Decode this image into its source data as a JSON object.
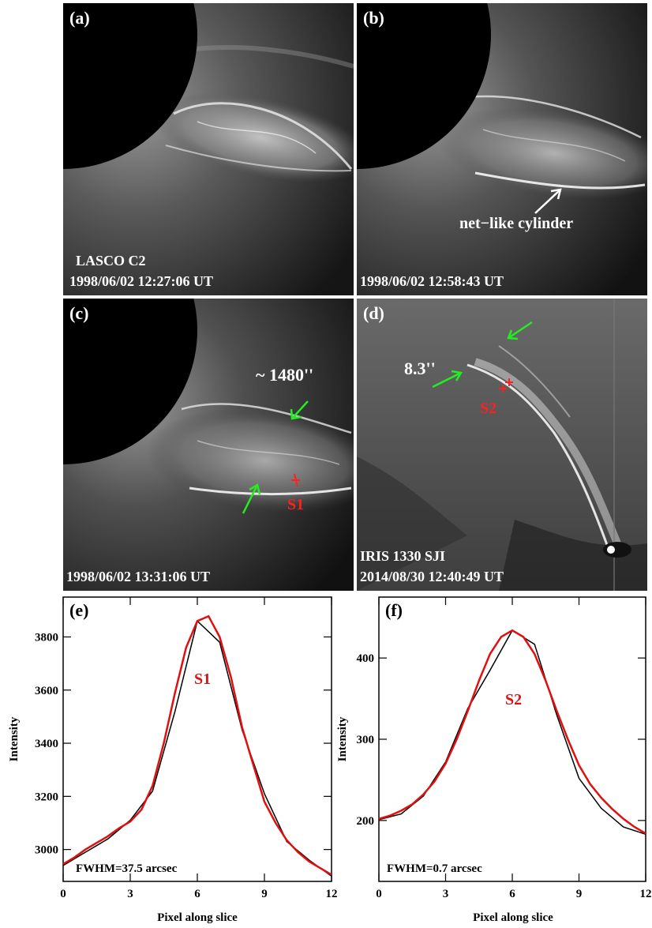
{
  "panels": {
    "a": {
      "label": "(a)",
      "instrument": "LASCO  C2",
      "timestamp": "1998/06/02 12:27:06 UT"
    },
    "b": {
      "label": "(b)",
      "annotation": "net−like cylinder",
      "timestamp": "1998/06/02 12:58:43 UT"
    },
    "c": {
      "label": "(c)",
      "size_annotation": "~ 1480''",
      "slice_label": "S1",
      "timestamp": "1998/06/02 13:31:06 UT"
    },
    "d": {
      "label": "(d)",
      "size_annotation": "8.3''",
      "slice_label": "S2",
      "instrument": "IRIS 1330 SJI",
      "timestamp": "2014/08/30  12:40:49 UT"
    }
  },
  "colors": {
    "observed": "#000000",
    "fit": "#e01010",
    "arrow_green": "#22ee22",
    "marker_red": "#ff2020"
  },
  "chart_data": [
    {
      "type": "line",
      "panel_label": "(e)",
      "xlabel": "Pixel along slice",
      "ylabel": "Intensity",
      "xlim": [
        0,
        12
      ],
      "ylim": [
        2880,
        3950
      ],
      "xticks": [
        0,
        3,
        6,
        9,
        12
      ],
      "yticks": [
        3000,
        3200,
        3400,
        3600,
        3800
      ],
      "curve_label": "S1",
      "fwhm_text": "FWHM=37.5 arcsec",
      "series": [
        {
          "x": [
            0,
            1,
            2,
            3,
            4,
            5,
            6,
            7,
            8,
            9,
            10,
            11,
            12
          ],
          "values": [
            2940,
            2990,
            3040,
            3110,
            3220,
            3520,
            3860,
            3780,
            3450,
            3210,
            3030,
            2960,
            2900
          ]
        },
        {
          "x": [
            0,
            0.5,
            1,
            1.5,
            2,
            2.5,
            3,
            3.5,
            4,
            4.5,
            5,
            5.5,
            6,
            6.5,
            7,
            7.5,
            8,
            8.5,
            9,
            9.5,
            10,
            10.5,
            11,
            11.5,
            12
          ],
          "values": [
            2945,
            2970,
            3000,
            3025,
            3050,
            3080,
            3105,
            3150,
            3240,
            3400,
            3590,
            3760,
            3860,
            3878,
            3800,
            3650,
            3460,
            3320,
            3180,
            3100,
            3035,
            2990,
            2955,
            2930,
            2905
          ]
        }
      ]
    },
    {
      "type": "line",
      "panel_label": "(f)",
      "xlabel": "Pixel along slice",
      "ylabel": "Intensity",
      "xlim": [
        0,
        12
      ],
      "ylim": [
        125,
        475
      ],
      "xticks": [
        0,
        3,
        6,
        9,
        12
      ],
      "yticks": [
        200,
        300,
        400
      ],
      "curve_label": "S2",
      "fwhm_text": "FWHM=0.7 arcsec",
      "series": [
        {
          "x": [
            0,
            1,
            2,
            3,
            4,
            5,
            6,
            7,
            8,
            9,
            10,
            11,
            12
          ],
          "values": [
            201,
            208,
            230,
            272,
            338,
            385,
            434,
            417,
            330,
            252,
            215,
            192,
            183
          ]
        },
        {
          "x": [
            0,
            0.5,
            1,
            1.5,
            2,
            2.5,
            3,
            3.5,
            4,
            4.5,
            5,
            5.5,
            6,
            6.5,
            7,
            7.5,
            8,
            8.5,
            9,
            9.5,
            10,
            10.5,
            11,
            11.5,
            12
          ],
          "values": [
            202,
            206,
            212,
            220,
            232,
            248,
            270,
            300,
            335,
            372,
            405,
            426,
            434,
            426,
            405,
            372,
            335,
            300,
            268,
            245,
            228,
            214,
            202,
            192,
            184
          ]
        }
      ]
    }
  ]
}
